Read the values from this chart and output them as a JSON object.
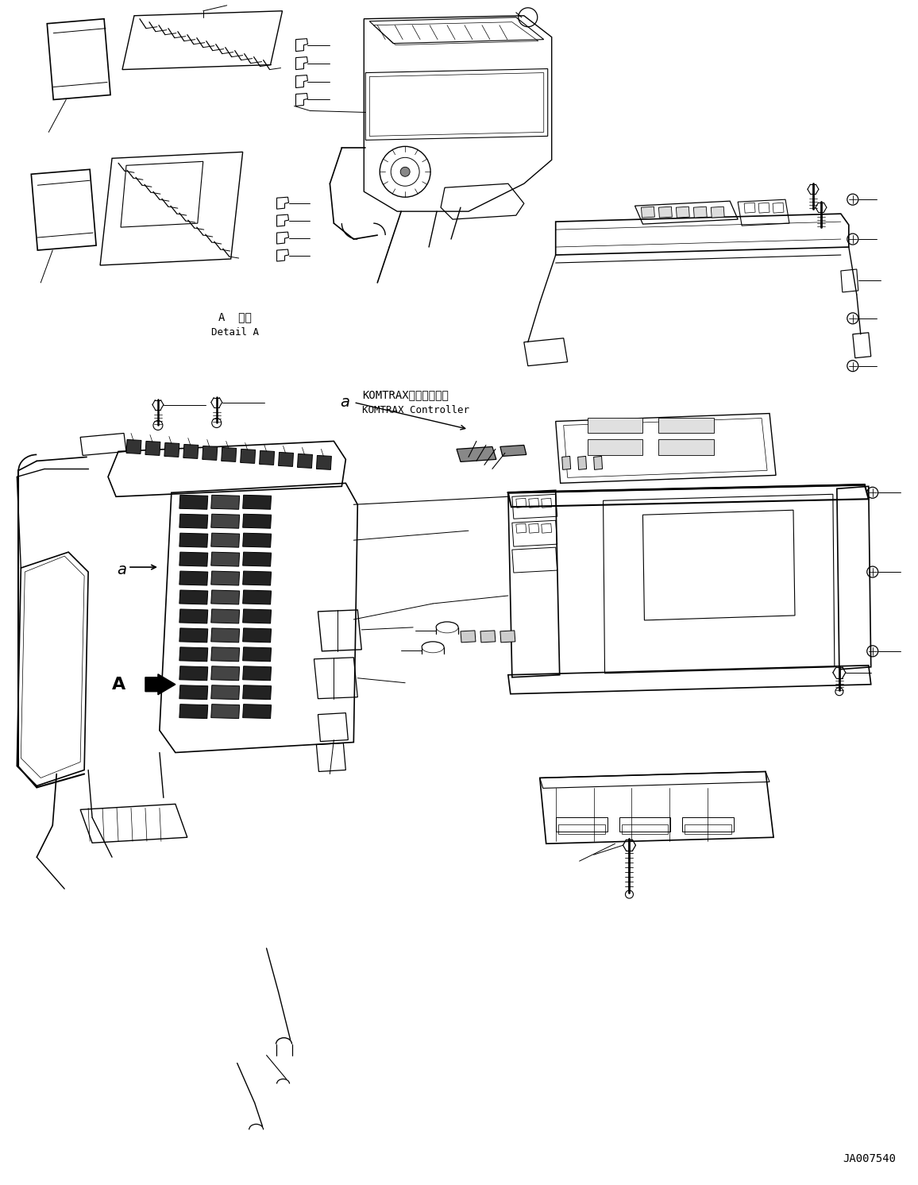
{
  "figure_width": 11.56,
  "figure_height": 14.92,
  "dpi": 100,
  "bg_color": "#ffffff",
  "line_color": "#000000",
  "title_bottom_right": "JA007540",
  "label_detail_a_jp": "A  詳細",
  "label_detail_a_en": "Detail A",
  "label_komtrax_jp": "KOMTRAXコントローラ",
  "label_komtrax_en": "KOMTRAX Controller",
  "label_a_small": "a",
  "label_A_big": "A"
}
